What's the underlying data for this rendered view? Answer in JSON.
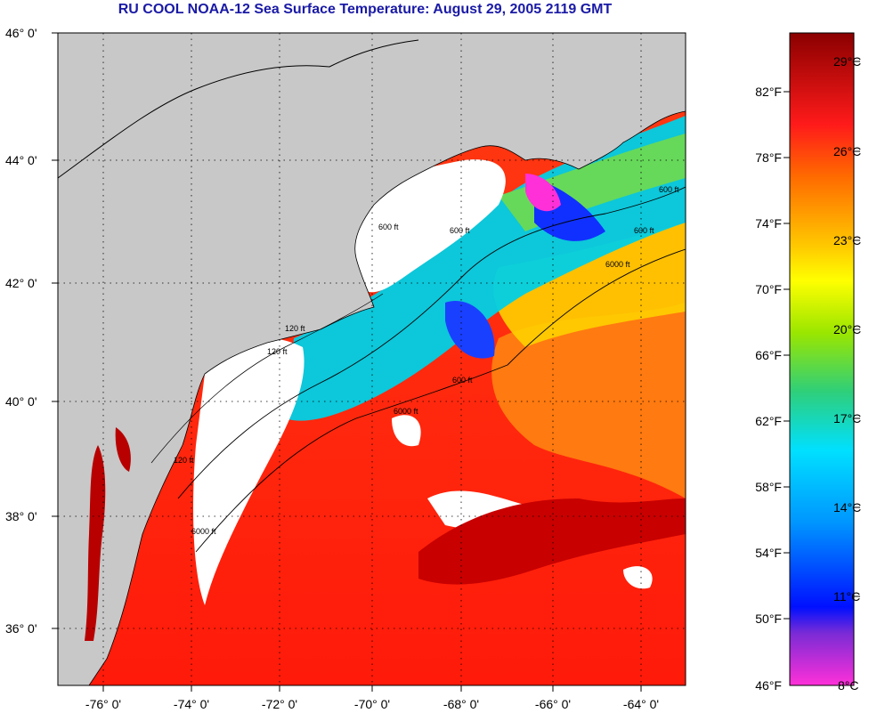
{
  "title": "RU COOL  NOAA-12  Sea Surface Temperature:  August 29, 2005 2119 GMT",
  "colors": {
    "title": "#1a1aa6",
    "land": "#c8c8c8",
    "cloud": "#ffffff"
  },
  "axes": {
    "longitude_ticks": [
      "-76° 0'",
      "-74° 0'",
      "-72° 0'",
      "-70° 0'",
      "-68° 0'",
      "-66° 0'",
      "-64° 0'"
    ],
    "latitude_ticks": [
      "46° 0'",
      "44° 0'",
      "42° 0'",
      "40° 0'",
      "38° 0'",
      "36° 0'"
    ],
    "grid": "dotted"
  },
  "isobath_labels": [
    "600 ft",
    "600 ft",
    "600 ft",
    "600 ft",
    "6000 ft",
    "6000 ft",
    "600 ft",
    "6000 ft",
    "120 ft",
    "120 ft",
    "120 ft"
  ],
  "colorbar": {
    "fahrenheit": [
      "82°F",
      "78°F",
      "74°F",
      "70°F",
      "66°F",
      "62°F",
      "58°F",
      "54°F",
      "50°F",
      "46°F"
    ],
    "celsius": [
      "29°C",
      "26°C",
      "23°C",
      "20°C",
      "17°C",
      "14°C",
      "11°C",
      "8°C"
    ]
  }
}
